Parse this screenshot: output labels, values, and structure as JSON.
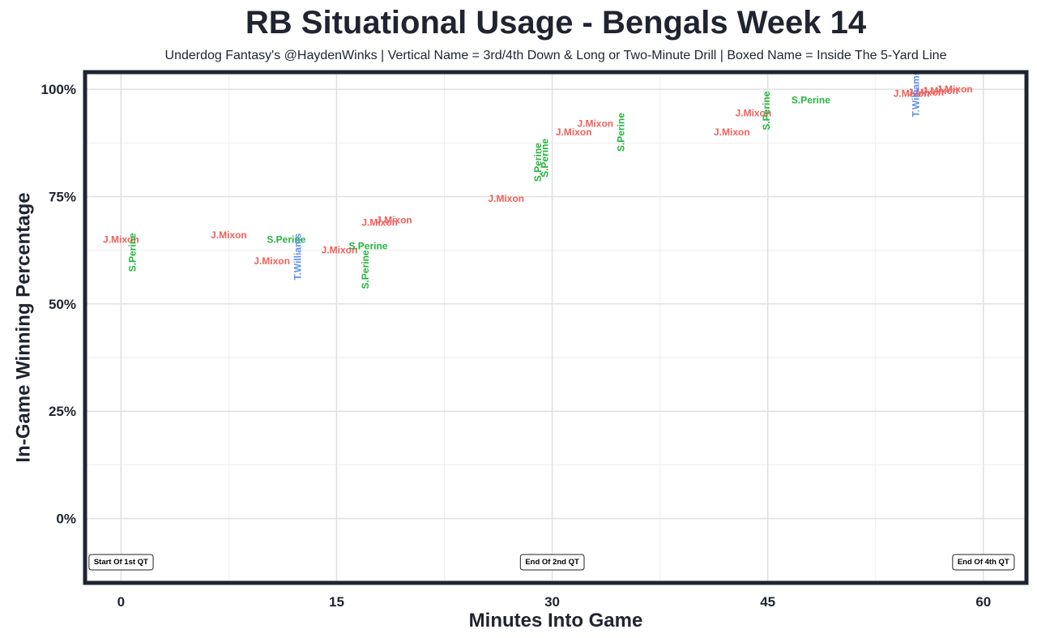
{
  "chart_data": {
    "type": "scatter",
    "title": "RB Situational Usage - Bengals Week 14",
    "subtitle": "Underdog Fantasy's @HaydenWinks | Vertical Name = 3rd/4th Down & Long or Two-Minute Drill | Boxed Name = Inside The 5-Yard Line",
    "xlabel": "Minutes Into Game",
    "ylabel": "In-Game Winning Percentage",
    "xlim": [
      -2.5,
      63
    ],
    "ylim": [
      -15,
      104
    ],
    "x_ticks": [
      0,
      15,
      30,
      45,
      60
    ],
    "x_tick_labels": [
      "0",
      "15",
      "30",
      "45",
      "60"
    ],
    "y_ticks": [
      0,
      25,
      50,
      75,
      100
    ],
    "y_tick_labels": [
      "0%",
      "25%",
      "50%",
      "75%",
      "100%"
    ],
    "grid": true,
    "players": {
      "J.Mixon": "#f0605a",
      "S.Perine": "#22b53a",
      "T.Williams": "#5b8ff5"
    },
    "points": [
      {
        "player": "J.Mixon",
        "x": 0.0,
        "y": 65,
        "vertical": false
      },
      {
        "player": "S.Perine",
        "x": 0.8,
        "y": 62,
        "vertical": true
      },
      {
        "player": "J.Mixon",
        "x": 7.5,
        "y": 66,
        "vertical": false
      },
      {
        "player": "J.Mixon",
        "x": 10.5,
        "y": 60,
        "vertical": false
      },
      {
        "player": "S.Perine",
        "x": 11.5,
        "y": 65,
        "vertical": false
      },
      {
        "player": "T.Williams",
        "x": 12.3,
        "y": 61,
        "vertical": true
      },
      {
        "player": "J.Mixon",
        "x": 15.2,
        "y": 62.5,
        "vertical": false
      },
      {
        "player": "S.Perine",
        "x": 17.2,
        "y": 63.5,
        "vertical": false
      },
      {
        "player": "S.Perine",
        "x": 17.0,
        "y": 58,
        "vertical": true
      },
      {
        "player": "J.Mixon",
        "x": 18.0,
        "y": 69,
        "vertical": false
      },
      {
        "player": "J.Mixon",
        "x": 19.0,
        "y": 69.5,
        "vertical": false
      },
      {
        "player": "J.Mixon",
        "x": 26.8,
        "y": 74.5,
        "vertical": false
      },
      {
        "player": "S.Perine",
        "x": 29.0,
        "y": 83,
        "vertical": true
      },
      {
        "player": "S.Perine",
        "x": 29.5,
        "y": 84,
        "vertical": true
      },
      {
        "player": "J.Mixon",
        "x": 31.5,
        "y": 90,
        "vertical": false
      },
      {
        "player": "J.Mixon",
        "x": 33.0,
        "y": 92,
        "vertical": false
      },
      {
        "player": "S.Perine",
        "x": 34.8,
        "y": 90,
        "vertical": true
      },
      {
        "player": "J.Mixon",
        "x": 42.5,
        "y": 90,
        "vertical": false
      },
      {
        "player": "J.Mixon",
        "x": 44.0,
        "y": 94.5,
        "vertical": false
      },
      {
        "player": "S.Perine",
        "x": 44.9,
        "y": 95,
        "vertical": true
      },
      {
        "player": "S.Perine",
        "x": 48.0,
        "y": 97.5,
        "vertical": false
      },
      {
        "player": "J.Mixon",
        "x": 55.0,
        "y": 99,
        "vertical": false
      },
      {
        "player": "J.Mixon",
        "x": 56.0,
        "y": 99.3,
        "vertical": false
      },
      {
        "player": "J.Mixon",
        "x": 57.0,
        "y": 99.7,
        "vertical": false
      },
      {
        "player": "J.Mixon",
        "x": 58.0,
        "y": 100,
        "vertical": false
      },
      {
        "player": "T.Williams",
        "x": 55.3,
        "y": 99,
        "vertical": true
      }
    ],
    "annotations": [
      {
        "text": "Start Of 1st QT",
        "x": 0,
        "y": -10
      },
      {
        "text": "End Of 2nd QT",
        "x": 30,
        "y": -10
      },
      {
        "text": "End Of 4th QT",
        "x": 60,
        "y": -10
      }
    ]
  }
}
